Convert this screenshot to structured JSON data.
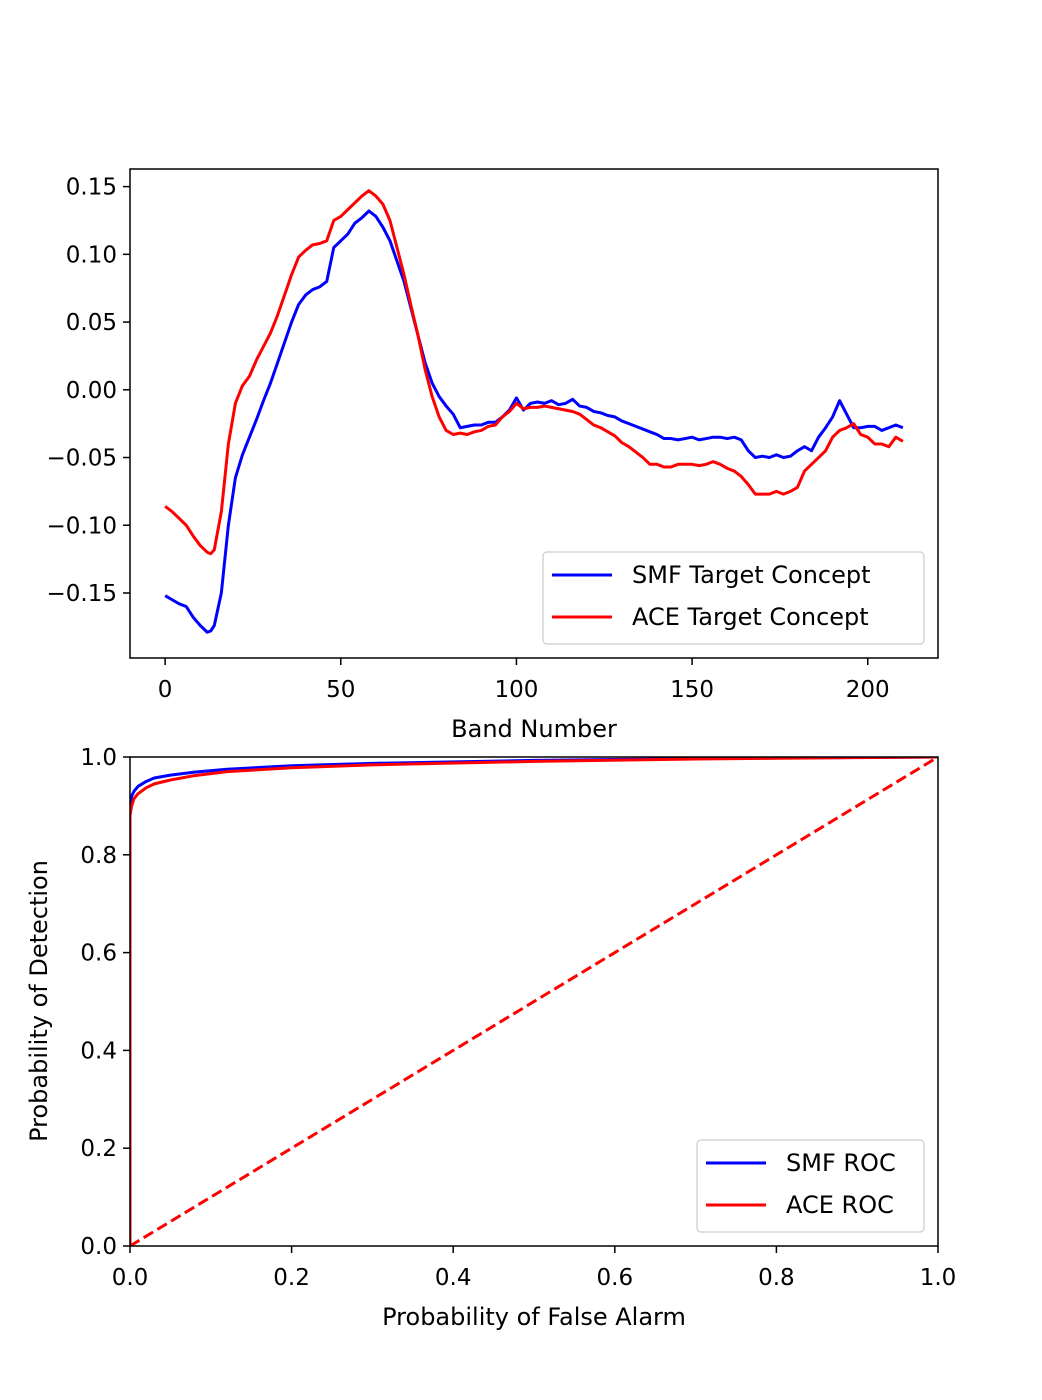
{
  "colors": {
    "smf": "#0000ff",
    "ace": "#ff0000",
    "axes": "#000000",
    "background": "#ffffff"
  },
  "chart_data": [
    {
      "type": "line",
      "title": "",
      "xlabel": "Band Number",
      "ylabel": "",
      "xlim": [
        -10,
        220
      ],
      "ylim": [
        -0.198,
        0.163
      ],
      "xticks": [
        0,
        50,
        100,
        150,
        200
      ],
      "xtick_labels": [
        "0",
        "50",
        "100",
        "150",
        "200"
      ],
      "yticks": [
        -0.15,
        -0.1,
        -0.05,
        0.0,
        0.05,
        0.1,
        0.15
      ],
      "ytick_labels": [
        "−0.15",
        "−0.10",
        "−0.05",
        "0.00",
        "0.05",
        "0.10",
        "0.15"
      ],
      "grid": false,
      "legend_position": "lower-right",
      "series": [
        {
          "name": "SMF Target Concept",
          "color": "#0000ff",
          "style": "solid",
          "x": [
            0,
            2,
            4,
            6,
            8,
            10,
            12,
            13,
            14,
            16,
            18,
            20,
            22,
            24,
            26,
            28,
            30,
            32,
            34,
            36,
            38,
            40,
            42,
            44,
            46,
            48,
            50,
            52,
            54,
            56,
            58,
            60,
            62,
            64,
            66,
            68,
            70,
            72,
            74,
            76,
            78,
            80,
            82,
            84,
            86,
            88,
            90,
            92,
            94,
            96,
            98,
            100,
            102,
            104,
            106,
            108,
            110,
            112,
            114,
            116,
            118,
            120,
            122,
            124,
            126,
            128,
            130,
            132,
            134,
            136,
            138,
            140,
            142,
            144,
            146,
            148,
            150,
            152,
            154,
            156,
            158,
            160,
            162,
            164,
            166,
            168,
            170,
            172,
            174,
            176,
            178,
            180,
            182,
            184,
            186,
            188,
            190,
            192,
            194,
            196,
            198,
            200,
            202,
            204,
            206,
            208,
            210
          ],
          "y": [
            -0.152,
            -0.155,
            -0.158,
            -0.16,
            -0.168,
            -0.174,
            -0.179,
            -0.178,
            -0.174,
            -0.15,
            -0.1,
            -0.065,
            -0.048,
            -0.035,
            -0.022,
            -0.008,
            0.005,
            0.02,
            0.035,
            0.05,
            0.063,
            0.07,
            0.074,
            0.076,
            0.08,
            0.105,
            0.11,
            0.115,
            0.123,
            0.127,
            0.132,
            0.128,
            0.12,
            0.11,
            0.095,
            0.08,
            0.06,
            0.04,
            0.02,
            0.005,
            -0.005,
            -0.012,
            -0.018,
            -0.028,
            -0.027,
            -0.026,
            -0.026,
            -0.024,
            -0.024,
            -0.02,
            -0.015,
            -0.006,
            -0.015,
            -0.01,
            -0.009,
            -0.01,
            -0.008,
            -0.011,
            -0.01,
            -0.007,
            -0.012,
            -0.013,
            -0.016,
            -0.017,
            -0.019,
            -0.02,
            -0.023,
            -0.025,
            -0.027,
            -0.029,
            -0.031,
            -0.033,
            -0.036,
            -0.036,
            -0.037,
            -0.036,
            -0.035,
            -0.037,
            -0.036,
            -0.035,
            -0.035,
            -0.036,
            -0.035,
            -0.037,
            -0.045,
            -0.05,
            -0.049,
            -0.05,
            -0.048,
            -0.05,
            -0.049,
            -0.045,
            -0.042,
            -0.045,
            -0.035,
            -0.028,
            -0.02,
            -0.008,
            -0.018,
            -0.028,
            -0.028,
            -0.027,
            -0.027,
            -0.03,
            -0.028,
            -0.026,
            -0.028
          ]
        },
        {
          "name": "ACE Target Concept",
          "color": "#ff0000",
          "style": "solid",
          "x": [
            0,
            2,
            4,
            6,
            8,
            10,
            12,
            13,
            14,
            16,
            18,
            20,
            22,
            24,
            26,
            28,
            30,
            32,
            34,
            36,
            38,
            40,
            42,
            44,
            46,
            48,
            50,
            52,
            54,
            56,
            58,
            60,
            62,
            64,
            66,
            68,
            70,
            72,
            74,
            76,
            78,
            80,
            82,
            84,
            86,
            88,
            90,
            92,
            94,
            96,
            98,
            100,
            102,
            104,
            106,
            108,
            110,
            112,
            114,
            116,
            118,
            120,
            122,
            124,
            126,
            128,
            130,
            132,
            134,
            136,
            138,
            140,
            142,
            144,
            146,
            148,
            150,
            152,
            154,
            156,
            158,
            160,
            162,
            164,
            166,
            168,
            170,
            172,
            174,
            176,
            178,
            180,
            182,
            184,
            186,
            188,
            190,
            192,
            194,
            196,
            198,
            200,
            202,
            204,
            206,
            208,
            210
          ],
          "y": [
            -0.086,
            -0.09,
            -0.095,
            -0.1,
            -0.108,
            -0.115,
            -0.12,
            -0.121,
            -0.118,
            -0.09,
            -0.04,
            -0.01,
            0.003,
            0.01,
            0.022,
            0.032,
            0.042,
            0.055,
            0.07,
            0.085,
            0.098,
            0.103,
            0.107,
            0.108,
            0.11,
            0.125,
            0.128,
            0.133,
            0.138,
            0.143,
            0.147,
            0.143,
            0.137,
            0.125,
            0.105,
            0.085,
            0.062,
            0.04,
            0.015,
            -0.005,
            -0.02,
            -0.03,
            -0.033,
            -0.032,
            -0.033,
            -0.031,
            -0.03,
            -0.027,
            -0.026,
            -0.02,
            -0.016,
            -0.01,
            -0.014,
            -0.013,
            -0.013,
            -0.012,
            -0.013,
            -0.014,
            -0.015,
            -0.016,
            -0.018,
            -0.022,
            -0.026,
            -0.028,
            -0.031,
            -0.034,
            -0.039,
            -0.042,
            -0.046,
            -0.05,
            -0.055,
            -0.055,
            -0.057,
            -0.057,
            -0.055,
            -0.055,
            -0.055,
            -0.056,
            -0.055,
            -0.053,
            -0.055,
            -0.058,
            -0.06,
            -0.064,
            -0.07,
            -0.077,
            -0.077,
            -0.077,
            -0.075,
            -0.077,
            -0.075,
            -0.072,
            -0.06,
            -0.055,
            -0.05,
            -0.045,
            -0.035,
            -0.03,
            -0.028,
            -0.025,
            -0.033,
            -0.035,
            -0.04,
            -0.04,
            -0.042,
            -0.035,
            -0.038
          ]
        }
      ]
    },
    {
      "type": "line",
      "title": "",
      "xlabel": "Probability of False Alarm",
      "ylabel": "Probability of Detection",
      "xlim": [
        0,
        1
      ],
      "ylim": [
        0,
        1
      ],
      "xticks": [
        0,
        0.2,
        0.4,
        0.6,
        0.8,
        1.0
      ],
      "xtick_labels": [
        "0.0",
        "0.2",
        "0.4",
        "0.6",
        "0.8",
        "1.0"
      ],
      "yticks": [
        0,
        0.2,
        0.4,
        0.6,
        0.8,
        1.0
      ],
      "ytick_labels": [
        "0.0",
        "0.2",
        "0.4",
        "0.6",
        "0.8",
        "1.0"
      ],
      "grid": false,
      "legend_position": "lower-right",
      "series": [
        {
          "name": "SMF ROC",
          "color": "#0000ff",
          "style": "solid",
          "x": [
            0,
            0,
            0.002,
            0.005,
            0.01,
            0.02,
            0.03,
            0.05,
            0.08,
            0.12,
            0.2,
            0.3,
            0.5,
            0.7,
            1.0
          ],
          "y": [
            0,
            0.9,
            0.92,
            0.93,
            0.94,
            0.95,
            0.957,
            0.963,
            0.969,
            0.975,
            0.982,
            0.987,
            0.993,
            0.997,
            1.0
          ]
        },
        {
          "name": "ACE ROC",
          "color": "#ff0000",
          "style": "solid",
          "x": [
            0,
            0,
            0.002,
            0.005,
            0.01,
            0.02,
            0.03,
            0.05,
            0.08,
            0.12,
            0.2,
            0.3,
            0.5,
            0.7,
            1.0
          ],
          "y": [
            0,
            0.88,
            0.9,
            0.915,
            0.925,
            0.937,
            0.945,
            0.953,
            0.962,
            0.97,
            0.978,
            0.984,
            0.991,
            0.996,
            1.0
          ]
        },
        {
          "name": "",
          "color": "#ff0000",
          "style": "dashed",
          "x": [
            0,
            1
          ],
          "y": [
            0,
            1
          ]
        }
      ]
    }
  ]
}
